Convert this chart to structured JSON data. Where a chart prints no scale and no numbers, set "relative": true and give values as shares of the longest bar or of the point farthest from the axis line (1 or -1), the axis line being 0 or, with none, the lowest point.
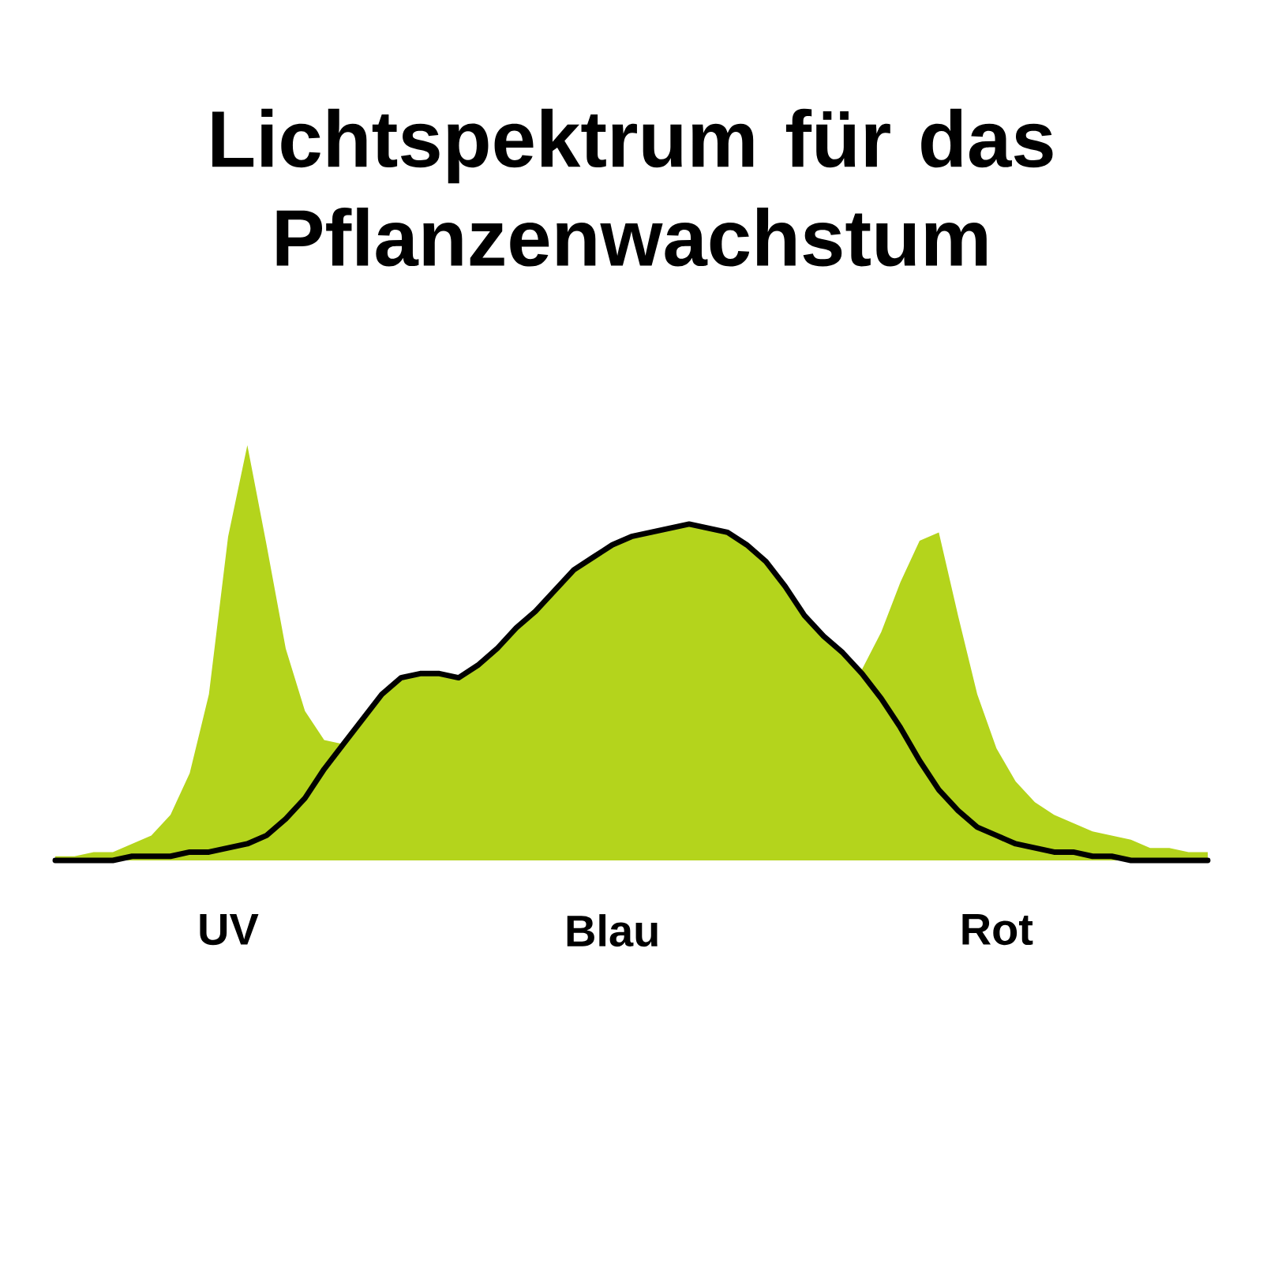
{
  "chart_data": {
    "type": "area",
    "title": "Lichtspektrum für das Pflanzenwachstum",
    "relative": true,
    "categories": [
      null,
      null,
      null,
      null,
      null,
      null,
      null,
      null,
      null,
      "UV",
      null,
      null,
      null,
      null,
      null,
      null,
      null,
      null,
      null,
      null,
      null,
      null,
      null,
      null,
      null,
      null,
      null,
      null,
      null,
      "Blau",
      null,
      null,
      null,
      null,
      null,
      null,
      null,
      null,
      null,
      null,
      null,
      null,
      null,
      null,
      null,
      null,
      null,
      null,
      null,
      "Rot",
      null,
      null,
      null,
      null,
      null,
      null,
      null,
      null,
      null,
      null,
      null
    ],
    "series": [
      {
        "color": "#b4d41c",
        "values": [
          0.01,
          0.01,
          0.02,
          0.02,
          0.04,
          0.06,
          0.11,
          0.21,
          0.4,
          0.78,
          1.0,
          0.76,
          0.51,
          0.36,
          0.29,
          0.28,
          0.34,
          0.4,
          0.44,
          0.45,
          0.45,
          0.44,
          0.47,
          0.51,
          0.56,
          0.6,
          0.65,
          0.7,
          0.73,
          0.76,
          0.78,
          0.79,
          0.8,
          0.81,
          0.8,
          0.79,
          0.76,
          0.72,
          0.66,
          0.59,
          0.54,
          0.5,
          0.46,
          0.55,
          0.67,
          0.77,
          0.79,
          0.59,
          0.4,
          0.27,
          0.19,
          0.14,
          0.11,
          0.09,
          0.07,
          0.06,
          0.05,
          0.03,
          0.03,
          0.02,
          0.02
        ]
      },
      {
        "type": "line",
        "color": "#000000",
        "values": [
          0,
          0,
          0,
          0,
          0.01,
          0.01,
          0.01,
          0.02,
          0.02,
          0.03,
          0.04,
          0.06,
          0.1,
          0.15,
          0.22,
          0.28,
          0.34,
          0.4,
          0.44,
          0.45,
          0.45,
          0.44,
          0.47,
          0.51,
          0.56,
          0.6,
          0.65,
          0.7,
          0.73,
          0.76,
          0.78,
          0.79,
          0.8,
          0.81,
          0.8,
          0.79,
          0.76,
          0.72,
          0.66,
          0.59,
          0.54,
          0.5,
          0.45,
          0.39,
          0.32,
          0.24,
          0.17,
          0.12,
          0.08,
          0.06,
          0.04,
          0.03,
          0.02,
          0.02,
          0.01,
          0.01,
          0,
          0,
          0,
          0,
          0
        ]
      }
    ]
  }
}
